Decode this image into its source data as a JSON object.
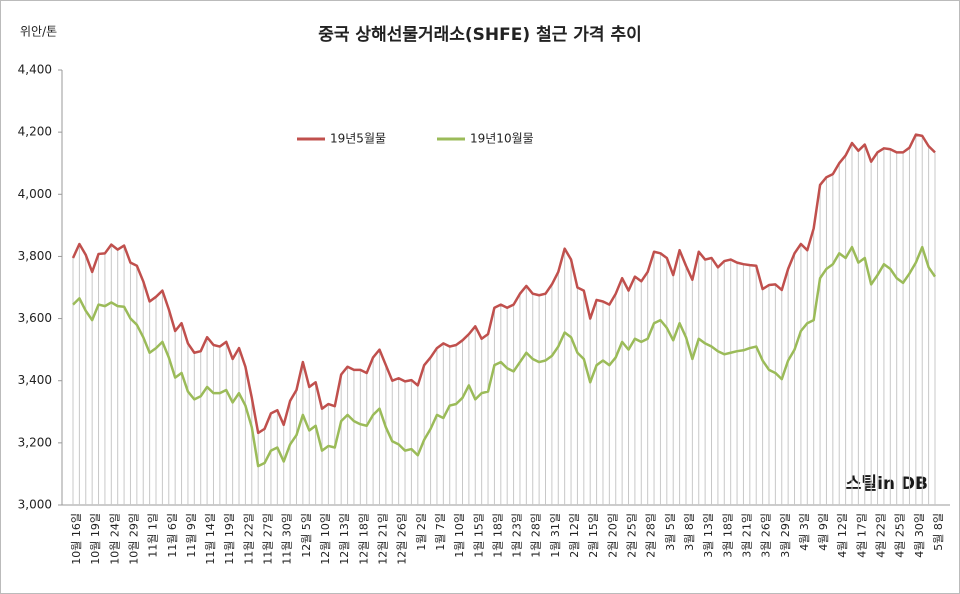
{
  "chart_data": {
    "type": "line",
    "title": "중국 상해선물거래소(SHFE) 철근 가격 추이",
    "y_label": "위안/톤",
    "logo": "스틸in DB",
    "categories": [
      "10월 16일",
      null,
      null,
      "10월 19일",
      null,
      null,
      "10월 24일",
      null,
      null,
      "10월 29일",
      null,
      null,
      "11월 1일",
      null,
      null,
      "11월 6일",
      null,
      null,
      "11월 9일",
      null,
      null,
      "11월 14일",
      null,
      null,
      "11월 19일",
      null,
      null,
      "11월 22일",
      null,
      null,
      "11월 27일",
      null,
      null,
      "11월 30일",
      null,
      null,
      "12월 5일",
      null,
      null,
      "12월 10일",
      null,
      null,
      "12월 13일",
      null,
      null,
      "12월 18일",
      null,
      null,
      "12월 21일",
      null,
      null,
      "12월 26일",
      null,
      null,
      "1월 2일",
      null,
      null,
      "1월 7일",
      null,
      null,
      "1월 10일",
      null,
      null,
      "1월 15일",
      null,
      null,
      "1월 18일",
      null,
      null,
      "1월 23일",
      null,
      null,
      "1월 28일",
      null,
      null,
      "1월 31일",
      null,
      null,
      "2월 12일",
      null,
      null,
      "2월 15일",
      null,
      null,
      "2월 20일",
      null,
      null,
      "2월 25일",
      null,
      null,
      "2월 28일",
      null,
      null,
      "3월 5일",
      null,
      null,
      "3월 8일",
      null,
      null,
      "3월 13일",
      null,
      null,
      "3월 18일",
      null,
      null,
      "3월 21일",
      null,
      null,
      "3월 26일",
      null,
      null,
      "3월 29일",
      null,
      null,
      "4월 3일",
      null,
      null,
      "4월 9일",
      null,
      null,
      "4월 12일",
      null,
      null,
      "4월 17일",
      null,
      null,
      "4월 22일",
      null,
      null,
      "4월 25일",
      null,
      null,
      "4월 30일",
      null,
      null,
      "5월 8일"
    ],
    "series": [
      {
        "name": "19년5월물",
        "color": "#c0504d",
        "values": [
          3795,
          3840,
          3805,
          3750,
          3808,
          3810,
          3838,
          3822,
          3835,
          3780,
          3770,
          3720,
          3655,
          3670,
          3690,
          3630,
          3560,
          3585,
          3520,
          3490,
          3495,
          3540,
          3515,
          3510,
          3525,
          3470,
          3505,
          3445,
          3345,
          3232,
          3245,
          3295,
          3305,
          3258,
          3335,
          3370,
          3460,
          3380,
          3395,
          3310,
          3325,
          3318,
          3420,
          3445,
          3435,
          3435,
          3425,
          3475,
          3500,
          3450,
          3400,
          3408,
          3398,
          3402,
          3385,
          3450,
          3475,
          3505,
          3520,
          3510,
          3515,
          3530,
          3550,
          3575,
          3535,
          3550,
          3635,
          3645,
          3635,
          3645,
          3680,
          3705,
          3680,
          3675,
          3680,
          3710,
          3750,
          3825,
          3790,
          3700,
          3690,
          3600,
          3660,
          3655,
          3645,
          3680,
          3730,
          3690,
          3735,
          3720,
          3750,
          3815,
          3810,
          3795,
          3740,
          3820,
          3770,
          3725,
          3815,
          3790,
          3795,
          3765,
          3785,
          3790,
          3780,
          3775,
          3772,
          3770,
          3695,
          3708,
          3710,
          3692,
          3760,
          3810,
          3840,
          3820,
          3890,
          4030,
          4055,
          4065,
          4100,
          4125,
          4165,
          4140,
          4160,
          4105,
          4135,
          4148,
          4145,
          4135,
          4135,
          4150,
          4192,
          4188,
          4155,
          4135
        ]
      },
      {
        "name": "19년10월물",
        "color": "#9bbb59",
        "values": [
          3645,
          3665,
          3625,
          3595,
          3645,
          3640,
          3652,
          3640,
          3638,
          3600,
          3580,
          3540,
          3490,
          3505,
          3525,
          3475,
          3410,
          3425,
          3365,
          3340,
          3350,
          3380,
          3360,
          3360,
          3370,
          3330,
          3360,
          3320,
          3250,
          3125,
          3135,
          3175,
          3185,
          3140,
          3195,
          3225,
          3290,
          3240,
          3255,
          3175,
          3190,
          3185,
          3270,
          3290,
          3270,
          3260,
          3255,
          3290,
          3310,
          3250,
          3205,
          3195,
          3175,
          3180,
          3160,
          3210,
          3245,
          3290,
          3280,
          3320,
          3325,
          3345,
          3385,
          3340,
          3360,
          3365,
          3450,
          3460,
          3440,
          3430,
          3460,
          3490,
          3470,
          3460,
          3465,
          3480,
          3510,
          3555,
          3540,
          3490,
          3470,
          3395,
          3450,
          3465,
          3450,
          3475,
          3525,
          3500,
          3535,
          3525,
          3535,
          3585,
          3595,
          3570,
          3530,
          3585,
          3540,
          3470,
          3535,
          3520,
          3510,
          3495,
          3485,
          3490,
          3495,
          3498,
          3505,
          3510,
          3465,
          3435,
          3425,
          3405,
          3465,
          3500,
          3560,
          3585,
          3595,
          3730,
          3760,
          3775,
          3810,
          3795,
          3830,
          3780,
          3795,
          3710,
          3740,
          3775,
          3760,
          3730,
          3715,
          3745,
          3780,
          3830,
          3765,
          3735
        ]
      }
    ],
    "ylim": [
      3000,
      4400
    ],
    "yticks": [
      {
        "value": 3000,
        "label": "3,000"
      },
      {
        "value": 3200,
        "label": "3,200"
      },
      {
        "value": 3400,
        "label": "3,400"
      },
      {
        "value": 3600,
        "label": "3,600"
      },
      {
        "value": 3800,
        "label": "3,800"
      },
      {
        "value": 4000,
        "label": "4,000"
      },
      {
        "value": 4200,
        "label": "4,200"
      },
      {
        "value": 4400,
        "label": "4,400"
      }
    ],
    "drop_lines": true
  }
}
